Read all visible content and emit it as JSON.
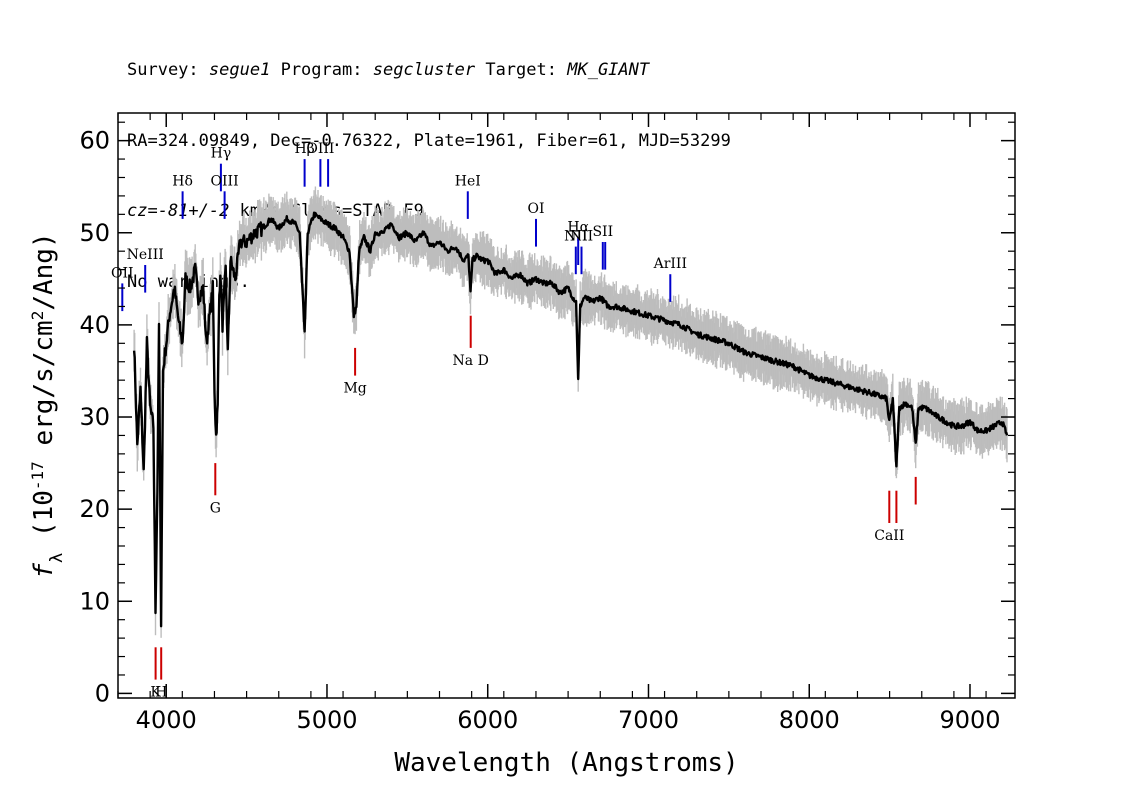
{
  "header": {
    "survey_label": "Survey:",
    "survey": "segue1",
    "program_label": "Program:",
    "program": "segcluster",
    "target_label": "Target:",
    "target": "MK_GIANT",
    "line2": "RA=324.09849, Dec=-0.76322, Plate=1961, Fiber=61, MJD=53299",
    "cz_label": "cz=",
    "cz": "-81+/-2",
    "cz_rest": " km/s Class=STAR F9",
    "line4": "No warnings."
  },
  "chart_data": {
    "type": "line",
    "xlabel": "Wavelength (Angstroms)",
    "ylabel": "f_λ (10^-17 erg/s/cm^2/Ang)",
    "xlim": [
      3700,
      9280
    ],
    "ylim": [
      -0.5,
      63
    ],
    "xticks": [
      4000,
      5000,
      6000,
      7000,
      8000,
      9000
    ],
    "yticks": [
      0,
      10,
      20,
      30,
      40,
      50,
      60
    ],
    "grid": false,
    "series": [
      {
        "color": "#000000",
        "error_color": "#bdbdbd",
        "x": [
          3800,
          3820,
          3840,
          3860,
          3880,
          3900,
          3920,
          3933,
          3945,
          3955,
          3968,
          3980,
          4000,
          4020,
          4050,
          4080,
          4101,
          4120,
          4150,
          4180,
          4200,
          4230,
          4250,
          4270,
          4290,
          4300,
          4310,
          4320,
          4330,
          4340,
          4350,
          4370,
          4383,
          4400,
          4430,
          4460,
          4500,
          4550,
          4600,
          4650,
          4700,
          4750,
          4800,
          4830,
          4861,
          4880,
          4920,
          4960,
          5000,
          5050,
          5100,
          5140,
          5167,
          5183,
          5200,
          5230,
          5270,
          5300,
          5350,
          5400,
          5450,
          5500,
          5550,
          5600,
          5650,
          5700,
          5750,
          5800,
          5850,
          5880,
          5893,
          5905,
          5930,
          5970,
          6000,
          6050,
          6100,
          6150,
          6200,
          6250,
          6300,
          6350,
          6400,
          6450,
          6500,
          6530,
          6550,
          6563,
          6575,
          6600,
          6650,
          6700,
          6750,
          6800,
          6900,
          7000,
          7100,
          7200,
          7300,
          7400,
          7500,
          7600,
          7700,
          7800,
          7900,
          8000,
          8100,
          8200,
          8300,
          8400,
          8480,
          8498,
          8520,
          8542,
          8560,
          8600,
          8640,
          8662,
          8680,
          8720,
          8760,
          8800,
          8850,
          8900,
          8950,
          9000,
          9050,
          9100,
          9150,
          9200,
          9230
        ],
        "y": [
          38,
          27,
          33,
          24,
          38,
          31,
          29,
          9,
          22,
          40,
          8,
          35,
          38,
          41,
          44,
          40,
          38,
          45,
          44,
          46,
          43,
          44,
          38,
          41,
          44,
          33,
          28,
          31,
          44,
          45,
          40,
          46,
          37,
          47,
          45,
          49,
          49,
          50,
          50.5,
          51.5,
          50.5,
          51.5,
          51,
          50,
          39,
          50,
          52,
          51.5,
          51,
          50.5,
          49.5,
          48,
          41,
          42,
          48,
          49.5,
          48,
          50,
          50,
          51,
          49.5,
          50,
          49,
          50,
          48.5,
          49,
          48,
          48.5,
          47,
          47.5,
          43.5,
          47,
          47.5,
          47,
          47,
          45.5,
          46,
          45,
          45.5,
          44.5,
          45,
          44.5,
          44.5,
          43.5,
          44,
          43,
          42.5,
          34,
          42,
          43,
          42.5,
          43,
          42,
          42,
          41.5,
          41,
          40.5,
          40,
          39,
          38.5,
          38,
          37,
          36.5,
          36,
          35.5,
          34.5,
          34,
          33.5,
          33,
          32.5,
          32,
          29.5,
          32,
          24.5,
          31,
          31.5,
          31,
          27,
          31,
          31,
          30.5,
          30,
          29.5,
          29,
          29,
          29.5,
          28.5,
          28.5,
          29,
          29.5,
          28
        ]
      }
    ],
    "annotations": [
      {
        "label": "NeIII",
        "x": 3869,
        "y": 46.5,
        "ylow": 43.5,
        "kind": "emission",
        "label_side": "above"
      },
      {
        "label": "OII",
        "x": 3727,
        "y": 44.5,
        "ylow": 41.5,
        "kind": "emission",
        "label_side": "above"
      },
      {
        "label": "Hδ",
        "x": 4102,
        "y": 54.5,
        "ylow": 51.5,
        "kind": "emission",
        "label_side": "above"
      },
      {
        "label": "Hγ",
        "x": 4340,
        "y": 57.5,
        "ylow": 54.5,
        "kind": "emission",
        "label_side": "above"
      },
      {
        "label": "OIII",
        "x": 4363,
        "y": 54.5,
        "ylow": 51.5,
        "kind": "emission",
        "label_side": "above"
      },
      {
        "label": "Hβ",
        "x": 4861,
        "y": 58,
        "ylow": 55,
        "kind": "emission",
        "label_side": "above"
      },
      {
        "label": "OIII",
        "x": 4959,
        "y": 58,
        "ylow": 55,
        "kind": "emission",
        "label_side": "above"
      },
      {
        "label": "",
        "x": 5007,
        "y": 58,
        "ylow": 55,
        "kind": "emission",
        "label_side": "above"
      },
      {
        "label": "HeI",
        "x": 5876,
        "y": 54.5,
        "ylow": 51.5,
        "kind": "emission",
        "label_side": "above"
      },
      {
        "label": "OI",
        "x": 6300,
        "y": 51.5,
        "ylow": 48.5,
        "kind": "emission",
        "label_side": "above"
      },
      {
        "label": "NII",
        "x": 6548,
        "y": 48.5,
        "ylow": 45.5,
        "kind": "emission",
        "label_side": "above"
      },
      {
        "label": "Hα",
        "x": 6563,
        "y": 49.5,
        "ylow": 46.5,
        "kind": "emission",
        "label_side": "above"
      },
      {
        "label": "NII",
        "x": 6583,
        "y": 48.5,
        "ylow": 45.5,
        "kind": "emission",
        "label_side": "above"
      },
      {
        "label": "SII",
        "x": 6716,
        "y": 49,
        "ylow": 46,
        "kind": "emission",
        "label_side": "above"
      },
      {
        "label": "",
        "x": 6731,
        "y": 49,
        "ylow": 46,
        "kind": "emission",
        "label_side": "above"
      },
      {
        "label": "ArIII",
        "x": 7136,
        "y": 45.5,
        "ylow": 42.5,
        "kind": "emission",
        "label_side": "above"
      },
      {
        "label": "K",
        "x": 3934,
        "y": 5,
        "ylow": 1.5,
        "kind": "absorption",
        "label_side": "below"
      },
      {
        "label": "H",
        "x": 3969,
        "y": 5,
        "ylow": 1.5,
        "kind": "absorption",
        "label_side": "below"
      },
      {
        "label": "G",
        "x": 4305,
        "y": 25,
        "ylow": 21.5,
        "kind": "absorption",
        "label_side": "below"
      },
      {
        "label": "Mg",
        "x": 5175,
        "y": 37.5,
        "ylow": 34.5,
        "kind": "absorption",
        "label_side": "below"
      },
      {
        "label": "Na D",
        "x": 5894,
        "y": 41,
        "ylow": 37.5,
        "kind": "absorption",
        "label_side": "below"
      },
      {
        "label": "CaII",
        "x": 8498,
        "y": 22,
        "ylow": 18.5,
        "kind": "absorption",
        "label_side": "below"
      },
      {
        "label": "",
        "x": 8542,
        "y": 22,
        "ylow": 18.5,
        "kind": "absorption",
        "label_side": "below"
      },
      {
        "label": "",
        "x": 8662,
        "y": 23.5,
        "ylow": 20.5,
        "kind": "absorption",
        "label_side": "below"
      }
    ],
    "colors": {
      "emission": "#0000cc",
      "absorption": "#cc0000"
    }
  }
}
